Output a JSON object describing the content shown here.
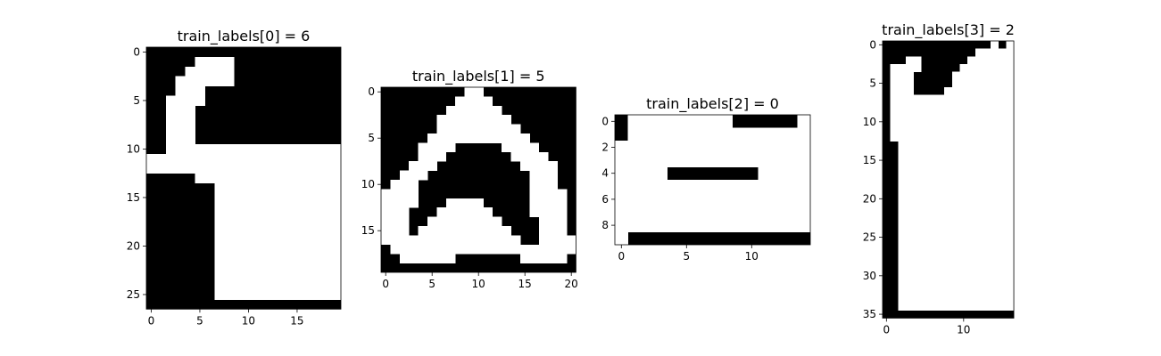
{
  "chart_data": [
    {
      "type": "heatmap",
      "title": "train_labels[0] = 6",
      "xticks": [
        0,
        5,
        10,
        15
      ],
      "yticks": [
        0,
        5,
        10,
        15,
        20,
        25
      ],
      "colors": {
        "on": "#ffffff",
        "off": "#000000"
      },
      "grid": [
        "00000000000000000000",
        "00000111100000000000",
        "00001111100000000000",
        "00011111100000000000",
        "00011100000000000000",
        "00111100000000000000",
        "00111000000000000000",
        "00111000000000000000",
        "00111000000000000000",
        "00111000000000000000",
        "00111111111111111111",
        "11111111111111111111",
        "11111111111111111111",
        "00000111111111111111",
        "00000001111111111111",
        "00000001111111111111",
        "00000001111111111111",
        "00000001111111111111",
        "00000001111111111111",
        "00000001111111111111",
        "00000001111111111111",
        "00000001111111111111",
        "00000001111111111111",
        "00000001111111111111",
        "00000001111111111111",
        "00000001111111111111",
        "00000000000000000000"
      ]
    },
    {
      "type": "heatmap",
      "title": "train_labels[1] = 5",
      "xticks": [
        0,
        5,
        10,
        15,
        20
      ],
      "yticks": [
        0,
        5,
        10,
        15
      ],
      "colors": {
        "on": "#ffffff",
        "off": "#000000"
      },
      "grid": [
        "000000000110000000000",
        "000000001111000000000",
        "000000011111100000000",
        "000000111111110000000",
        "000000111111111000000",
        "000001111111111100000",
        "000011110000011110000",
        "000011100000001111000",
        "000111000000000111100",
        "001110000000000011100",
        "011100000000000011100",
        "111100000000000011110",
        "111100011110000011110",
        "111000111111000011110",
        "111001111111100001110",
        "111011111111110001110",
        "111111111111111001111",
        "011111111111111111111",
        "001111110000000111110",
        "000000000000000000000"
      ]
    },
    {
      "type": "heatmap",
      "title": "train_labels[2] = 0",
      "xticks": [
        0,
        5,
        10
      ],
      "yticks": [
        0,
        2,
        4,
        6,
        8
      ],
      "colors": {
        "on": "#ffffff",
        "off": "#000000"
      },
      "grid": [
        "011111111000001",
        "011111111111111",
        "111111111111111",
        "111111111111111",
        "111100000001111",
        "111111111111111",
        "111111111111111",
        "111111111111111",
        "111111111111111",
        "100000000000000"
      ]
    },
    {
      "type": "heatmap",
      "title": "train_labels[3] = 2",
      "xticks": [
        0,
        10
      ],
      "yticks": [
        0,
        5,
        10,
        15,
        20,
        25,
        30,
        35
      ],
      "colors": {
        "on": "#ffffff",
        "off": "#000000"
      },
      "grid": [
        "00000000000000101",
        "00000000000011111",
        "00011000000111111",
        "01111000001111111",
        "01110000011111111",
        "01110000011111111",
        "01110000111111111",
        "01111111111111111",
        "01111111111111111",
        "01111111111111111",
        "01111111111111111",
        "01111111111111111",
        "01111111111111111",
        "00111111111111111",
        "00111111111111111",
        "00111111111111111",
        "00111111111111111",
        "00111111111111111",
        "00111111111111111",
        "00111111111111111",
        "00111111111111111",
        "00111111111111111",
        "00111111111111111",
        "00111111111111111",
        "00111111111111111",
        "00111111111111111",
        "00111111111111111",
        "00111111111111111",
        "00111111111111111",
        "00111111111111111",
        "00111111111111111",
        "00111111111111111",
        "00111111111111111",
        "00111111111111111",
        "00111111111111111",
        "00000000000000000"
      ]
    }
  ]
}
